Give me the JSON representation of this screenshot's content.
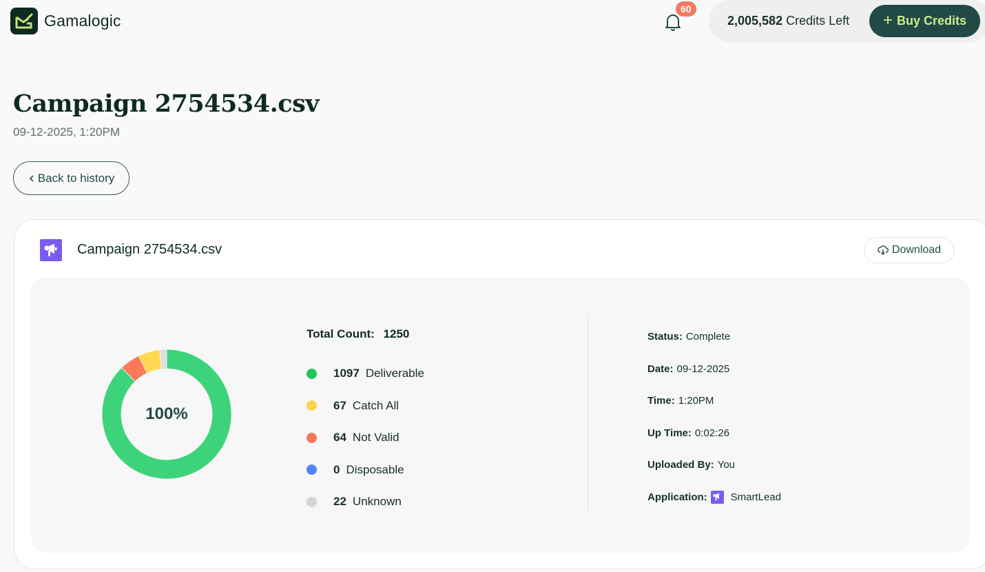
{
  "header": {
    "brand": "Gamalogic",
    "notifications_count": "60",
    "credits_amount": "2,005,582",
    "credits_suffix": "Credits Left",
    "buy_button_label": "Buy Credits",
    "buy_button_icon": "plus-icon"
  },
  "page": {
    "title": "Campaign 2754534.csv",
    "subtitle": "09-12-2025, 1:20PM",
    "back_button_label": "Back to history"
  },
  "card": {
    "title": "Campaign 2754534.csv",
    "icon": "megaphone-icon",
    "download_label": "Download",
    "total_label": "Total Count:",
    "total_value": "1250",
    "donut_center": "100%",
    "legend": [
      {
        "count": "1097",
        "label": "Deliverable",
        "color": "#22c55e"
      },
      {
        "count": "67",
        "label": "Catch All",
        "color": "#fcd34d"
      },
      {
        "count": "64",
        "label": "Not Valid",
        "color": "#f9785a"
      },
      {
        "count": "0",
        "label": "Disposable",
        "color": "#4f86f7"
      },
      {
        "count": "22",
        "label": "Unknown",
        "color": "#d1d5d4"
      }
    ],
    "meta": {
      "status_label": "Status:",
      "status_value": "Complete",
      "date_label": "Date:",
      "date_value": "09-12-2025",
      "time_label": "Time:",
      "time_value": "1:20PM",
      "uptime_label": "Up Time:",
      "uptime_value": "0:02:26",
      "uploaded_label": "Uploaded By:",
      "uploaded_value": "You",
      "application_label": "Application:",
      "application_value": "SmartLead"
    }
  },
  "chart_data": {
    "type": "pie",
    "title": "",
    "center_label": "100%",
    "categories": [
      "Deliverable",
      "Catch All",
      "Not Valid",
      "Disposable",
      "Unknown"
    ],
    "values": [
      1097,
      67,
      64,
      0,
      22
    ],
    "colors": [
      "#3dd37a",
      "#ffd84f",
      "#fb7a5c",
      "#4f86f7",
      "#dcdfde"
    ],
    "total": 1250,
    "donut": true
  },
  "colors": {
    "brand_dark": "#214a46",
    "brand_accent": "#cfe98a",
    "badge": "#f27a5e",
    "app_purple": "#7b5cf0"
  }
}
